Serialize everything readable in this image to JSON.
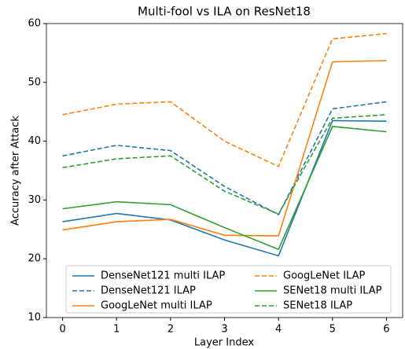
{
  "chart_data": {
    "type": "line",
    "title": "Multi-fool vs ILA on ResNet18",
    "xlabel": "Layer Index",
    "ylabel": "Accuracy after Attack",
    "x": [
      0,
      1,
      2,
      3,
      4,
      5,
      6
    ],
    "xlim": [
      -0.3,
      6.3
    ],
    "xticks": [
      0,
      1,
      2,
      3,
      4,
      5,
      6
    ],
    "ylim": [
      10,
      60
    ],
    "yticks": [
      10,
      20,
      30,
      40,
      50,
      60
    ],
    "legend": "lower center",
    "series": [
      {
        "name": "DenseNet121 multi ILAP",
        "color": "#1f77b4",
        "linestyle": "solid",
        "values": [
          26.3,
          27.7,
          26.6,
          23.2,
          20.5,
          43.5,
          43.4
        ]
      },
      {
        "name": "DenseNet121 ILAP",
        "color": "#1f77b4",
        "linestyle": "dashed",
        "values": [
          37.5,
          39.3,
          38.4,
          32.3,
          27.5,
          45.5,
          46.7
        ]
      },
      {
        "name": "GoogLeNet multi ILAP",
        "color": "#ff7f0e",
        "linestyle": "solid",
        "values": [
          24.9,
          26.3,
          26.7,
          24.0,
          23.9,
          53.5,
          53.7
        ]
      },
      {
        "name": "GoogLeNet ILAP",
        "color": "#ff7f0e",
        "linestyle": "dashed",
        "values": [
          44.5,
          46.3,
          46.7,
          40.0,
          35.7,
          57.4,
          58.3
        ]
      },
      {
        "name": "SENet18 multi ILAP",
        "color": "#2ca02c",
        "linestyle": "solid",
        "values": [
          28.5,
          29.7,
          29.2,
          25.3,
          21.6,
          42.5,
          41.6
        ]
      },
      {
        "name": "SENet18 ILAP",
        "color": "#2ca02c",
        "linestyle": "dashed",
        "values": [
          35.5,
          37.0,
          37.5,
          31.5,
          27.6,
          43.9,
          44.5
        ]
      }
    ]
  }
}
